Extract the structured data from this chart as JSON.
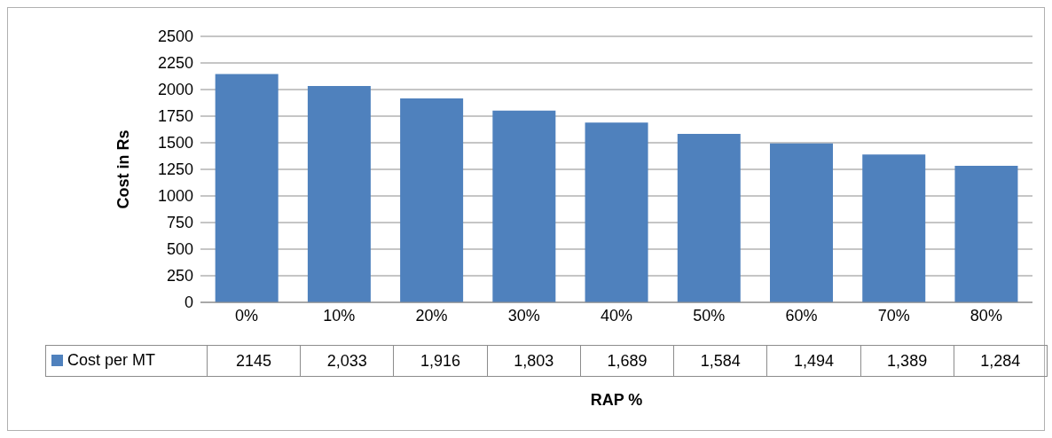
{
  "chart_data": {
    "type": "bar",
    "xlabel": "RAP %",
    "ylabel": "Cost in Rs",
    "categories": [
      "0%",
      "10%",
      "20%",
      "30%",
      "40%",
      "50%",
      "60%",
      "70%",
      "80%"
    ],
    "series": [
      {
        "name": "Cost per MT",
        "color": "#4f81bd",
        "values": [
          2145,
          2033,
          1916,
          1803,
          1689,
          1584,
          1494,
          1389,
          1284
        ],
        "value_labels": [
          "2145",
          "2,033",
          "1,916",
          "1,803",
          "1,689",
          "1,584",
          "1,494",
          "1,389",
          "1,284"
        ]
      }
    ],
    "ylim": [
      0,
      2500
    ],
    "yticks": [
      0,
      250,
      500,
      750,
      1000,
      1250,
      1500,
      1750,
      2000,
      2250,
      2500
    ],
    "grid": "y",
    "legend": "bottom"
  }
}
